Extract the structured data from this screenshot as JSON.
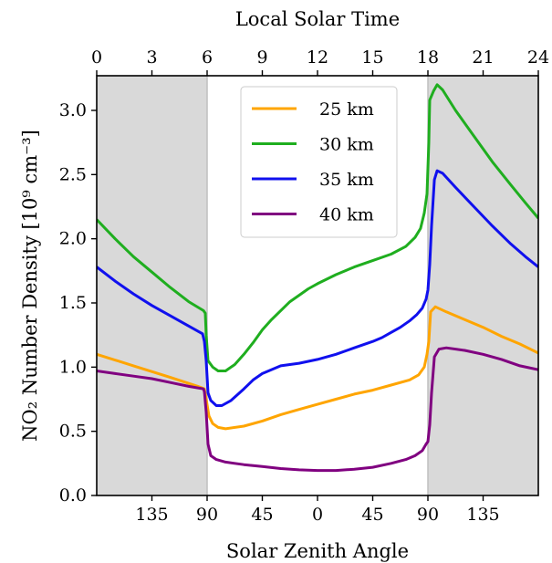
{
  "chart_data": {
    "type": "line",
    "x_unit": "Local Solar Time (hours)",
    "top_axis": {
      "label": "Local Solar Time",
      "ticks": [
        0,
        3,
        6,
        9,
        12,
        15,
        18,
        21,
        24
      ],
      "tick_labels": [
        "0",
        "3",
        "6",
        "9",
        "12",
        "15",
        "18",
        "21",
        "24"
      ],
      "range": [
        0,
        24
      ]
    },
    "bottom_axis": {
      "label": "Solar Zenith Angle",
      "ticks": [
        3,
        6,
        9,
        12,
        15,
        18,
        21
      ],
      "tick_labels": [
        "135",
        "90",
        "45",
        "0",
        "45",
        "90",
        "135"
      ]
    },
    "y_axis": {
      "label": "NO₂ Number Density [10⁹ cm⁻³]",
      "ticks": [
        0.0,
        0.5,
        1.0,
        1.5,
        2.0,
        2.5,
        3.0
      ],
      "tick_labels": [
        "0.0",
        "0.5",
        "1.0",
        "1.5",
        "2.0",
        "2.5",
        "3.0"
      ],
      "range": [
        0,
        3.27
      ]
    },
    "night_shading": [
      [
        0,
        6
      ],
      [
        18,
        24
      ]
    ],
    "night_color": "#d9d9d9",
    "legend_position": "top-center",
    "series": [
      {
        "name": "25 km",
        "color": "#ffa500",
        "points": [
          [
            0,
            1.1
          ],
          [
            2,
            1.01
          ],
          [
            4,
            0.92
          ],
          [
            5.5,
            0.85
          ],
          [
            5.85,
            0.83
          ],
          [
            5.95,
            0.75
          ],
          [
            6.1,
            0.62
          ],
          [
            6.3,
            0.56
          ],
          [
            6.6,
            0.53
          ],
          [
            7,
            0.52
          ],
          [
            8,
            0.54
          ],
          [
            9,
            0.58
          ],
          [
            10,
            0.63
          ],
          [
            11,
            0.67
          ],
          [
            12,
            0.71
          ],
          [
            13,
            0.75
          ],
          [
            14,
            0.79
          ],
          [
            15,
            0.82
          ],
          [
            16,
            0.86
          ],
          [
            17,
            0.9
          ],
          [
            17.5,
            0.94
          ],
          [
            17.8,
            1.0
          ],
          [
            17.95,
            1.1
          ],
          [
            18.05,
            1.2
          ],
          [
            18.15,
            1.43
          ],
          [
            18.4,
            1.47
          ],
          [
            19,
            1.43
          ],
          [
            20,
            1.37
          ],
          [
            21,
            1.31
          ],
          [
            22,
            1.24
          ],
          [
            23,
            1.18
          ],
          [
            24,
            1.11
          ]
        ]
      },
      {
        "name": "30 km",
        "color": "#1fae1f",
        "points": [
          [
            0,
            2.15
          ],
          [
            1,
            2.0
          ],
          [
            2,
            1.86
          ],
          [
            3,
            1.74
          ],
          [
            4,
            1.62
          ],
          [
            5,
            1.51
          ],
          [
            5.8,
            1.44
          ],
          [
            5.9,
            1.42
          ],
          [
            5.95,
            1.25
          ],
          [
            6.05,
            1.05
          ],
          [
            6.3,
            1.0
          ],
          [
            6.6,
            0.97
          ],
          [
            7,
            0.97
          ],
          [
            7.5,
            1.02
          ],
          [
            8,
            1.1
          ],
          [
            8.5,
            1.19
          ],
          [
            9,
            1.29
          ],
          [
            9.5,
            1.37
          ],
          [
            10,
            1.44
          ],
          [
            10.5,
            1.51
          ],
          [
            11,
            1.56
          ],
          [
            11.5,
            1.61
          ],
          [
            12,
            1.65
          ],
          [
            13,
            1.72
          ],
          [
            14,
            1.78
          ],
          [
            15,
            1.83
          ],
          [
            16,
            1.88
          ],
          [
            16.8,
            1.94
          ],
          [
            17.3,
            2.01
          ],
          [
            17.6,
            2.08
          ],
          [
            17.8,
            2.2
          ],
          [
            17.95,
            2.35
          ],
          [
            18.05,
            2.75
          ],
          [
            18.1,
            3.08
          ],
          [
            18.3,
            3.15
          ],
          [
            18.5,
            3.2
          ],
          [
            18.8,
            3.16
          ],
          [
            19.5,
            3.0
          ],
          [
            20.5,
            2.8
          ],
          [
            21.5,
            2.6
          ],
          [
            22.5,
            2.42
          ],
          [
            23.3,
            2.28
          ],
          [
            24,
            2.16
          ]
        ]
      },
      {
        "name": "35 km",
        "color": "#1010ee",
        "points": [
          [
            0,
            1.78
          ],
          [
            1,
            1.67
          ],
          [
            2,
            1.57
          ],
          [
            3,
            1.48
          ],
          [
            4,
            1.4
          ],
          [
            5,
            1.32
          ],
          [
            5.75,
            1.26
          ],
          [
            5.85,
            1.2
          ],
          [
            5.95,
            1.05
          ],
          [
            6.05,
            0.8
          ],
          [
            6.2,
            0.74
          ],
          [
            6.5,
            0.7
          ],
          [
            6.8,
            0.7
          ],
          [
            7.3,
            0.74
          ],
          [
            8,
            0.83
          ],
          [
            8.5,
            0.9
          ],
          [
            9,
            0.95
          ],
          [
            9.5,
            0.98
          ],
          [
            10,
            1.01
          ],
          [
            11,
            1.03
          ],
          [
            12,
            1.06
          ],
          [
            13,
            1.1
          ],
          [
            14,
            1.15
          ],
          [
            15,
            1.2
          ],
          [
            15.5,
            1.23
          ],
          [
            16,
            1.27
          ],
          [
            16.5,
            1.31
          ],
          [
            17,
            1.36
          ],
          [
            17.4,
            1.41
          ],
          [
            17.7,
            1.46
          ],
          [
            17.9,
            1.53
          ],
          [
            18.0,
            1.6
          ],
          [
            18.1,
            1.8
          ],
          [
            18.2,
            2.1
          ],
          [
            18.35,
            2.46
          ],
          [
            18.5,
            2.53
          ],
          [
            18.8,
            2.51
          ],
          [
            19.5,
            2.4
          ],
          [
            20.5,
            2.25
          ],
          [
            21.5,
            2.1
          ],
          [
            22.5,
            1.96
          ],
          [
            23.3,
            1.86
          ],
          [
            24,
            1.78
          ]
        ]
      },
      {
        "name": "40 km",
        "color": "#800080",
        "points": [
          [
            0,
            0.97
          ],
          [
            1,
            0.95
          ],
          [
            2,
            0.93
          ],
          [
            3,
            0.91
          ],
          [
            4,
            0.88
          ],
          [
            5,
            0.85
          ],
          [
            5.8,
            0.83
          ],
          [
            5.85,
            0.81
          ],
          [
            5.95,
            0.65
          ],
          [
            6.05,
            0.4
          ],
          [
            6.2,
            0.31
          ],
          [
            6.5,
            0.28
          ],
          [
            7,
            0.26
          ],
          [
            8,
            0.24
          ],
          [
            9,
            0.225
          ],
          [
            10,
            0.21
          ],
          [
            11,
            0.2
          ],
          [
            12,
            0.195
          ],
          [
            13,
            0.195
          ],
          [
            14,
            0.205
          ],
          [
            15,
            0.22
          ],
          [
            16,
            0.25
          ],
          [
            16.8,
            0.28
          ],
          [
            17.3,
            0.31
          ],
          [
            17.7,
            0.35
          ],
          [
            17.9,
            0.4
          ],
          [
            18.0,
            0.42
          ],
          [
            18.1,
            0.55
          ],
          [
            18.2,
            0.8
          ],
          [
            18.35,
            1.08
          ],
          [
            18.6,
            1.14
          ],
          [
            19,
            1.15
          ],
          [
            20,
            1.13
          ],
          [
            21,
            1.1
          ],
          [
            22,
            1.06
          ],
          [
            23,
            1.01
          ],
          [
            24,
            0.98
          ]
        ]
      }
    ]
  }
}
